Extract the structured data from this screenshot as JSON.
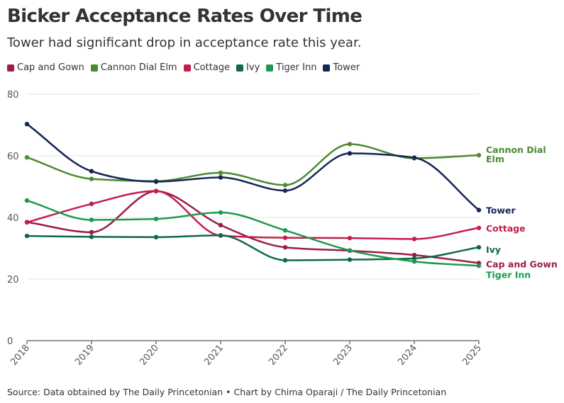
{
  "header": {
    "title": "Bicker Acceptance Rates Over Time",
    "subtitle": "Tower had significant drop in acceptance rate this year."
  },
  "footer": {
    "source": "Source: Data obtained by The Daily Princetonian • Chart by Chima Oparaji / The Daily Princetonian"
  },
  "colors": {
    "Cap and Gown": "#9b1d45",
    "Cannon Dial Elm": "#4c8a32",
    "Cottage": "#c41e4a",
    "Ivy": "#0d6a44",
    "Tiger Inn": "#1e9a4c",
    "Tower": "#152656",
    "grid": "#e6e6e6",
    "axis": "#333333"
  },
  "chart_data": {
    "type": "line",
    "title": "Bicker Acceptance Rates Over Time",
    "xlabel": "",
    "ylabel": "",
    "x": [
      "2018",
      "2019",
      "2020",
      "2021",
      "2022",
      "2023",
      "2024",
      "2025"
    ],
    "ylim": [
      0,
      80
    ],
    "yticks": [
      0,
      20,
      40,
      60,
      80
    ],
    "grid": true,
    "legend": "top-left",
    "series": [
      {
        "name": "Cap and Gown",
        "end_label": [
          "Cap and Gown"
        ],
        "values": [
          38.5,
          35.2,
          48.5,
          37.5,
          30.3,
          29.2,
          27.8,
          25.2
        ]
      },
      {
        "name": "Cannon Dial Elm",
        "end_label": [
          "Cannon Dial",
          "Elm"
        ],
        "values": [
          59.5,
          52.5,
          51.8,
          54.5,
          50.5,
          63.8,
          59.2,
          60.2
        ]
      },
      {
        "name": "Cottage",
        "end_label": [
          "Cottage"
        ],
        "values": [
          38.4,
          44.4,
          48.6,
          34.1,
          33.4,
          33.3,
          33.0,
          36.6
        ]
      },
      {
        "name": "Ivy",
        "end_label": [
          "Ivy"
        ],
        "values": [
          34.0,
          33.7,
          33.6,
          34.2,
          26.1,
          26.3,
          26.7,
          30.3
        ]
      },
      {
        "name": "Tiger Inn",
        "end_label": [
          "Tiger Inn"
        ],
        "values": [
          45.5,
          39.2,
          39.5,
          41.6,
          35.8,
          29.3,
          25.7,
          24.3
        ]
      },
      {
        "name": "Tower",
        "end_label": [
          "Tower"
        ],
        "values": [
          70.3,
          55.0,
          51.6,
          53.0,
          48.7,
          60.8,
          59.4,
          42.4
        ]
      }
    ]
  }
}
